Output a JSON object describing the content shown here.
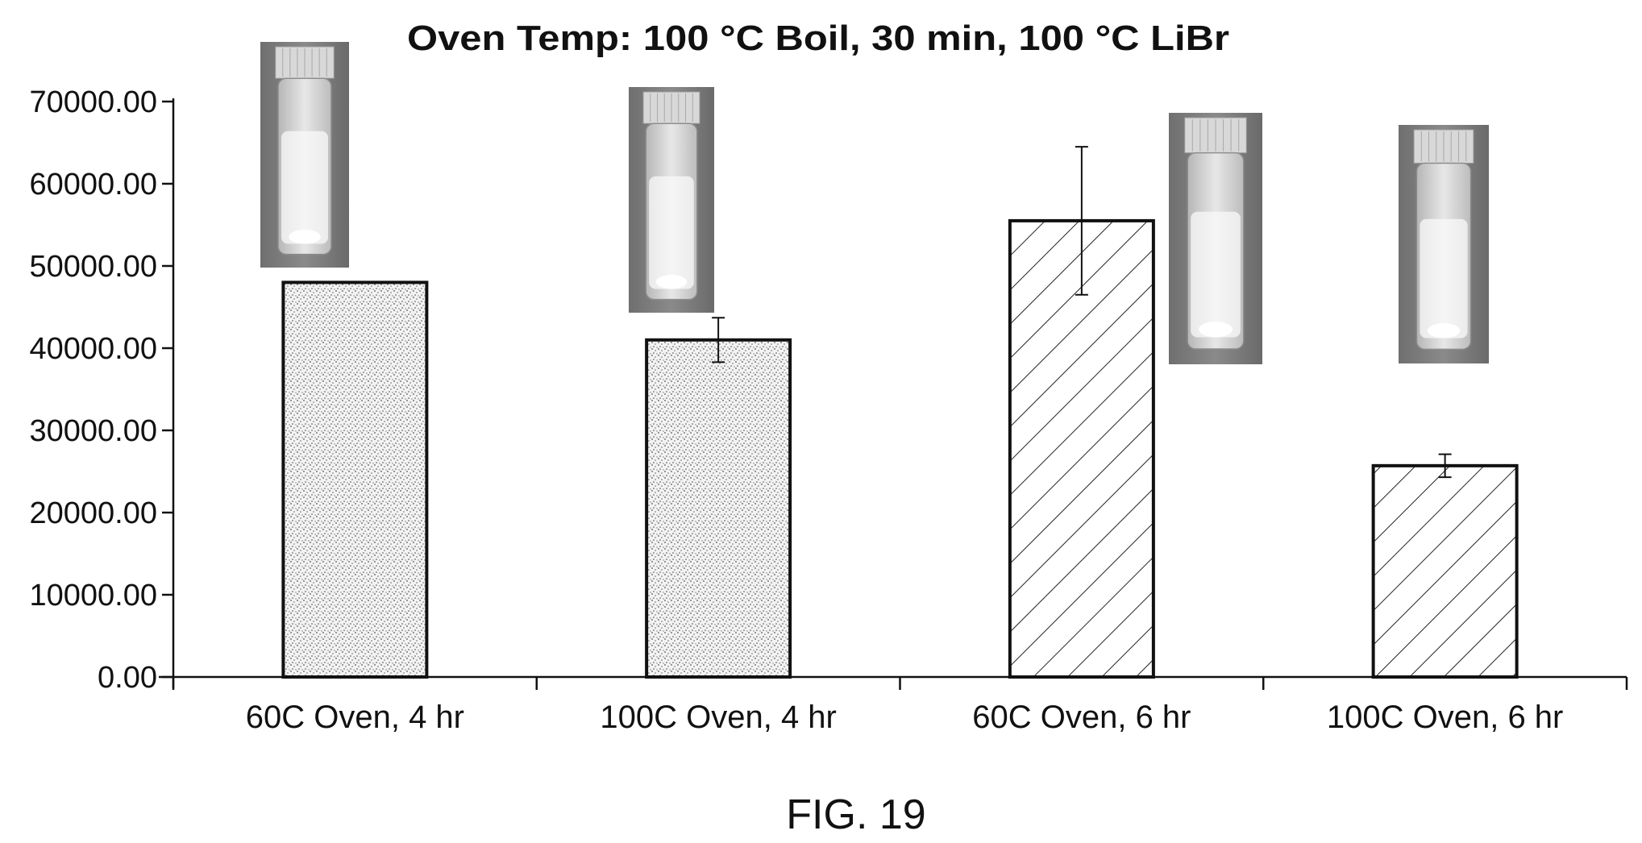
{
  "chart_data": {
    "type": "bar",
    "title": "Oven Temp: 100 °C Boil, 30 min, 100 °C LiBr",
    "xlabel": "",
    "ylabel": "",
    "ylim": [
      0,
      70000
    ],
    "yticks": [
      0,
      10000,
      20000,
      30000,
      40000,
      50000,
      60000,
      70000
    ],
    "ytick_labels": [
      "0.00",
      "10000.00",
      "20000.00",
      "30000.00",
      "40000.00",
      "50000.00",
      "60000.00",
      "70000.00"
    ],
    "categories": [
      "60C Oven, 4 hr",
      "100C Oven, 4 hr",
      "60C Oven, 6 hr",
      "100C Oven, 6 hr"
    ],
    "values": [
      48000,
      41000,
      55500,
      25700
    ],
    "error_bars": [
      null,
      2700,
      9000,
      1400
    ],
    "fill_patterns": [
      "stipple",
      "stipple",
      "hatch",
      "hatch"
    ],
    "grid": false,
    "legend": "none",
    "inset_images": [
      "vial-photo",
      "vial-photo",
      "vial-photo",
      "vial-photo"
    ]
  },
  "figure_label": "FIG. 19"
}
